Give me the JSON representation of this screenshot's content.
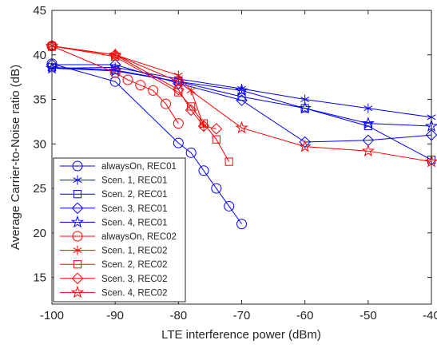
{
  "chart_data": {
    "type": "line",
    "title": "",
    "xlabel": "LTE interference power (dBm)",
    "ylabel": "Average Carrier-to-Noise ratio (dB)",
    "xlim": [
      -100,
      -40
    ],
    "ylim": [
      12,
      45
    ],
    "xticks": [
      -100,
      -90,
      -80,
      -70,
      -60,
      -50,
      -40
    ],
    "yticks": [
      15,
      20,
      25,
      30,
      35,
      40,
      45
    ],
    "xtick_labels": [
      "-100",
      "-90",
      "-80",
      "-70",
      "-60",
      "-50",
      "-40"
    ],
    "ytick_labels": [
      "15",
      "20",
      "25",
      "30",
      "35",
      "40",
      "45"
    ],
    "grid": false,
    "legend_position": "bottom-left",
    "colors": {
      "REC01": "#0000ff",
      "REC02": "#ff0000",
      "axis": "#262626"
    },
    "series": [
      {
        "name": "alwaysOn, REC01",
        "color": "#0000ff",
        "marker": "circle",
        "x": [
          -100,
          -90,
          -80,
          -78,
          -76,
          -74,
          -72,
          -70
        ],
        "y": [
          39.0,
          37.0,
          30.1,
          29.0,
          27.0,
          25.0,
          23.0,
          21.0
        ]
      },
      {
        "name": "Scen. 1, REC01",
        "color": "#0000ff",
        "marker": "asterisk",
        "x": [
          -100,
          -90,
          -80,
          -70,
          -60,
          -50,
          -40
        ],
        "y": [
          38.5,
          38.6,
          37.3,
          36.2,
          35.0,
          34.0,
          33.0
        ]
      },
      {
        "name": "Scen. 2, REC01",
        "color": "#0000ff",
        "marker": "square",
        "x": [
          -100,
          -90,
          -80,
          -70,
          -60,
          -50,
          -40
        ],
        "y": [
          38.6,
          38.3,
          37.0,
          35.3,
          34.0,
          32.0,
          28.2
        ]
      },
      {
        "name": "Scen. 3, REC01",
        "color": "#0000ff",
        "marker": "diamond",
        "x": [
          -100,
          -90,
          -80,
          -70,
          -60,
          -50,
          -40
        ],
        "y": [
          38.9,
          38.9,
          36.8,
          34.9,
          30.2,
          30.4,
          31.0
        ]
      },
      {
        "name": "Scen. 4, REC01",
        "color": "#0000ff",
        "marker": "pentagram",
        "x": [
          -100,
          -90,
          -80,
          -70,
          -60,
          -50,
          -40
        ],
        "y": [
          38.5,
          38.2,
          37.0,
          36.0,
          34.0,
          32.3,
          32.0
        ]
      },
      {
        "name": "alwaysOn, REC02",
        "color": "#ff0000",
        "marker": "circle",
        "x": [
          -100,
          -90,
          -88,
          -86,
          -84,
          -82,
          -80
        ],
        "y": [
          41.0,
          38.0,
          37.2,
          36.6,
          36.0,
          34.5,
          32.3
        ]
      },
      {
        "name": "Scen. 1, REC02",
        "color": "#ff0000",
        "marker": "asterisk",
        "x": [
          -100,
          -90,
          -80,
          -78,
          -76
        ],
        "y": [
          41.0,
          40.0,
          37.7,
          36.0,
          32.0
        ]
      },
      {
        "name": "Scen. 2, REC02",
        "color": "#ff0000",
        "marker": "square",
        "x": [
          -100,
          -90,
          -80,
          -78,
          -76,
          -74,
          -72
        ],
        "y": [
          41.0,
          39.8,
          35.8,
          34.2,
          32.3,
          30.5,
          28.0
        ]
      },
      {
        "name": "Scen. 3, REC02",
        "color": "#ff0000",
        "marker": "diamond",
        "x": [
          -100,
          -90,
          -80,
          -78,
          -76,
          -74
        ],
        "y": [
          41.0,
          40.0,
          36.1,
          33.8,
          32.0,
          31.7
        ]
      },
      {
        "name": "Scen. 4, REC02",
        "color": "#ff0000",
        "marker": "pentagram",
        "x": [
          -100,
          -90,
          -80,
          -70,
          -60,
          -50,
          -40
        ],
        "y": [
          41.0,
          40.0,
          37.0,
          31.8,
          29.7,
          29.2,
          28.0
        ]
      }
    ]
  }
}
